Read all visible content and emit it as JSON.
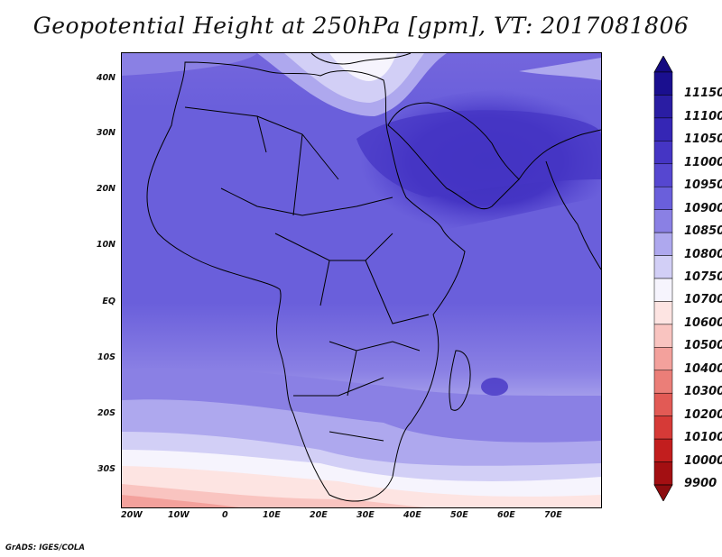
{
  "title": "Geopotential Height at 250hPa [gpm], VT: 2017081806",
  "credit": "GrADS: IGES/COLA",
  "lat_labels": [
    "40N",
    "30N",
    "20N",
    "10N",
    "EQ",
    "10S",
    "20S",
    "30S"
  ],
  "lon_labels": [
    "20W",
    "10W",
    "0",
    "10E",
    "20E",
    "30E",
    "40E",
    "50E",
    "60E",
    "70E"
  ],
  "colorbar": {
    "labels": [
      "11150",
      "11100",
      "11050",
      "11000",
      "10950",
      "10900",
      "10850",
      "10800",
      "10750",
      "10700",
      "10600",
      "10500",
      "10400",
      "10300",
      "10200",
      "10100",
      "10000",
      "9900"
    ],
    "colors": [
      "#1a0f8f",
      "#2a1da3",
      "#3526b5",
      "#4535c4",
      "#5647d0",
      "#6a5fdb",
      "#8a80e4",
      "#aea8ee",
      "#d2cff6",
      "#f6f4fd",
      "#fde4e2",
      "#f9c4c0",
      "#f3a19c",
      "#eb7e78",
      "#e25a55",
      "#d63a37",
      "#c21e1e",
      "#a30f12"
    ],
    "top_arrow_color": "#150a80",
    "bottom_arrow_color": "#8c0c0f"
  }
}
